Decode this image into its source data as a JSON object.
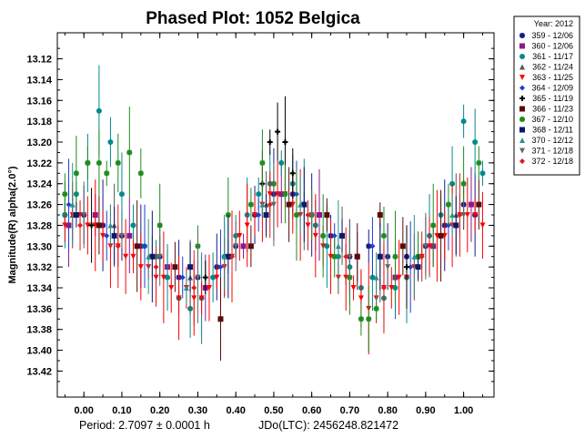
{
  "chart_data": {
    "type": "scatter",
    "title": "Phased Plot: 1052 Belgica",
    "xlabel": "",
    "ylabel": "Magnitude(R) alpha(2.0°)",
    "xlim": [
      -0.07,
      1.08
    ],
    "ylim": [
      13.445,
      13.095
    ],
    "y_inverted": true,
    "x_ticks": [
      "0.00",
      "0.10",
      "0.20",
      "0.30",
      "0.40",
      "0.50",
      "0.60",
      "0.70",
      "0.80",
      "0.90",
      "1.00"
    ],
    "x_tick_values": [
      0.0,
      0.1,
      0.2,
      0.3,
      0.4,
      0.5,
      0.6,
      0.7,
      0.8,
      0.9,
      1.0
    ],
    "y_ticks": [
      "13.12",
      "13.14",
      "13.16",
      "13.18",
      "13.20",
      "13.22",
      "13.24",
      "13.26",
      "13.28",
      "13.30",
      "13.32",
      "13.34",
      "13.36",
      "13.38",
      "13.40",
      "13.42"
    ],
    "y_tick_values": [
      13.12,
      13.14,
      13.16,
      13.18,
      13.2,
      13.22,
      13.24,
      13.26,
      13.28,
      13.3,
      13.32,
      13.34,
      13.36,
      13.38,
      13.4,
      13.42
    ],
    "grid": false,
    "legend_position": "right",
    "legend_title": "Year: 2012",
    "period_label": "Period: 2.7097 ± 0.0001 h",
    "jd_label": "JDo(LTC): 2456248.821472",
    "series": [
      {
        "name": "359 - 12/06",
        "color": "#1a1a8c",
        "marker": "star",
        "x": [
          -0.05,
          0.0,
          0.05,
          0.1,
          0.15,
          0.2,
          0.25,
          0.3,
          0.35,
          0.4,
          0.45,
          0.5,
          0.55,
          0.6,
          0.65,
          0.7,
          0.75,
          0.8,
          0.85,
          0.9,
          0.95,
          1.0,
          1.03
        ],
        "y": [
          13.27,
          13.27,
          13.28,
          13.29,
          13.3,
          13.31,
          13.33,
          13.33,
          13.32,
          13.3,
          13.27,
          13.25,
          13.25,
          13.27,
          13.29,
          13.31,
          13.3,
          13.31,
          13.31,
          13.3,
          13.28,
          13.26,
          13.27
        ]
      },
      {
        "name": "360 - 12/06",
        "color": "#8b1a8b",
        "marker": "square",
        "x": [
          -0.04,
          0.03,
          0.12,
          0.22,
          0.32,
          0.42,
          0.52,
          0.62,
          0.72,
          0.82,
          0.92,
          1.02
        ],
        "y": [
          13.28,
          13.27,
          13.29,
          13.32,
          13.34,
          13.3,
          13.25,
          13.27,
          13.31,
          13.33,
          13.3,
          13.26
        ]
      },
      {
        "name": "361 - 11/17",
        "color": "#008b8b",
        "marker": "circle",
        "x": [
          -0.05,
          -0.02,
          0.01,
          0.04,
          0.07,
          0.1,
          0.13,
          0.16,
          0.19,
          0.22,
          0.25,
          0.28,
          0.31,
          0.34,
          0.37,
          0.4,
          0.43,
          0.46,
          0.49,
          0.52,
          0.55,
          0.58,
          0.61,
          0.64,
          0.67,
          0.7,
          0.73,
          0.76,
          0.79,
          0.82,
          0.85,
          0.88,
          0.91,
          0.94,
          0.97,
          1.0,
          1.03,
          1.05
        ],
        "y": [
          13.27,
          13.25,
          13.22,
          13.17,
          13.2,
          13.25,
          13.28,
          13.3,
          13.31,
          13.33,
          13.35,
          13.36,
          13.35,
          13.33,
          13.31,
          13.29,
          13.27,
          13.25,
          13.24,
          13.22,
          13.24,
          13.26,
          13.28,
          13.3,
          13.31,
          13.32,
          13.34,
          13.33,
          13.35,
          13.34,
          13.33,
          13.31,
          13.29,
          13.27,
          13.24,
          13.18,
          13.2,
          13.23
        ]
      },
      {
        "name": "362 - 11/24",
        "color": "#555555",
        "marker": "triangle",
        "x": [
          -0.03,
          0.08,
          0.18,
          0.28,
          0.38,
          0.48,
          0.58,
          0.68,
          0.78,
          0.88,
          0.98
        ],
        "y": [
          13.27,
          13.28,
          13.31,
          13.33,
          13.31,
          13.26,
          13.26,
          13.29,
          13.31,
          13.31,
          13.27
        ]
      },
      {
        "name": "363 - 11/25",
        "color": "#ff0000",
        "marker": "triangle-down",
        "x": [
          -0.05,
          -0.03,
          -0.01,
          0.01,
          0.03,
          0.05,
          0.07,
          0.09,
          0.11,
          0.13,
          0.15,
          0.17,
          0.19,
          0.21,
          0.23,
          0.25,
          0.27,
          0.29,
          0.31,
          0.33,
          0.35,
          0.37,
          0.39,
          0.41,
          0.43,
          0.45,
          0.47,
          0.49,
          0.51,
          0.53,
          0.55,
          0.57,
          0.59,
          0.61,
          0.63,
          0.65,
          0.67,
          0.69,
          0.71,
          0.73,
          0.75,
          0.77,
          0.79,
          0.81,
          0.83,
          0.85,
          0.87,
          0.89,
          0.91,
          0.93,
          0.95,
          0.97,
          0.99,
          1.01,
          1.03,
          1.05
        ],
        "y": [
          13.28,
          13.27,
          13.27,
          13.28,
          13.28,
          13.29,
          13.3,
          13.3,
          13.31,
          13.31,
          13.32,
          13.32,
          13.33,
          13.33,
          13.34,
          13.35,
          13.34,
          13.35,
          13.35,
          13.34,
          13.33,
          13.32,
          13.31,
          13.29,
          13.28,
          13.27,
          13.26,
          13.25,
          13.25,
          13.25,
          13.26,
          13.27,
          13.28,
          13.29,
          13.3,
          13.31,
          13.33,
          13.33,
          13.34,
          13.35,
          13.36,
          13.35,
          13.34,
          13.34,
          13.33,
          13.33,
          13.32,
          13.31,
          13.3,
          13.29,
          13.29,
          13.28,
          13.27,
          13.27,
          13.27,
          13.28
        ]
      },
      {
        "name": "364 - 12/09",
        "color": "#1f3fcf",
        "marker": "diamond",
        "x": [
          -0.04,
          0.06,
          0.16,
          0.26,
          0.36,
          0.46,
          0.56,
          0.66,
          0.76,
          0.86,
          0.96
        ],
        "y": [
          13.26,
          13.29,
          13.3,
          13.33,
          13.32,
          13.27,
          13.25,
          13.29,
          13.3,
          13.32,
          13.28
        ]
      },
      {
        "name": "365 - 11/19",
        "color": "#000000",
        "marker": "plus",
        "x": [
          0.02,
          0.32,
          0.47,
          0.49,
          0.51,
          0.53,
          0.55,
          0.85
        ],
        "y": [
          13.28,
          13.33,
          13.24,
          13.2,
          13.19,
          13.2,
          13.23,
          13.32
        ]
      },
      {
        "name": "366 - 11/23",
        "color": "#5a0a0a",
        "marker": "square",
        "x": [
          0.04,
          0.14,
          0.24,
          0.36,
          0.44,
          0.54,
          0.64,
          0.72,
          0.78,
          0.84,
          0.94,
          1.04
        ],
        "y": [
          13.28,
          13.3,
          13.32,
          13.37,
          13.3,
          13.26,
          13.27,
          13.31,
          13.27,
          13.3,
          13.29,
          13.26
        ]
      },
      {
        "name": "367 - 12/10",
        "color": "#1e8c1e",
        "marker": "star",
        "x": [
          -0.05,
          -0.02,
          0.01,
          0.04,
          0.06,
          0.09,
          0.12,
          0.15,
          0.2,
          0.3,
          0.38,
          0.44,
          0.47,
          0.5,
          0.53,
          0.56,
          0.6,
          0.63,
          0.66,
          0.7,
          0.73,
          0.75,
          0.77,
          0.79,
          0.82,
          0.88,
          0.92,
          0.96,
          1.0,
          1.04
        ],
        "y": [
          13.25,
          13.23,
          13.22,
          13.22,
          13.23,
          13.22,
          13.21,
          13.23,
          13.28,
          13.3,
          13.27,
          13.26,
          13.22,
          13.24,
          13.25,
          13.27,
          13.27,
          13.29,
          13.31,
          13.33,
          13.37,
          13.37,
          13.36,
          13.29,
          13.31,
          13.31,
          13.28,
          13.26,
          13.24,
          13.22
        ]
      },
      {
        "name": "368 - 12/11",
        "color": "#0a1a6b",
        "marker": "square",
        "x": [
          -0.02,
          0.08,
          0.18,
          0.28,
          0.38,
          0.48,
          0.58,
          0.68,
          0.78,
          0.88,
          0.98
        ],
        "y": [
          13.27,
          13.29,
          13.31,
          13.32,
          13.31,
          13.27,
          13.26,
          13.29,
          13.31,
          13.32,
          13.28
        ]
      },
      {
        "name": "370 - 12/12",
        "color": "#2f8f8f",
        "marker": "triangle",
        "x": [
          -0.03,
          0.07,
          0.17,
          0.27,
          0.37,
          0.47,
          0.57,
          0.67,
          0.77,
          0.87,
          0.97
        ],
        "y": [
          13.26,
          13.28,
          13.31,
          13.34,
          13.31,
          13.26,
          13.26,
          13.3,
          13.33,
          13.31,
          13.27
        ]
      },
      {
        "name": "371 - 12/18",
        "color": "#666666",
        "marker": "triangle-down",
        "x": [
          0.0,
          0.1,
          0.2,
          0.3,
          0.4,
          0.5,
          0.6,
          0.7,
          0.8,
          0.9,
          1.0
        ],
        "y": [
          13.27,
          13.29,
          13.31,
          13.33,
          13.3,
          13.26,
          13.27,
          13.31,
          13.32,
          13.3,
          13.27
        ]
      },
      {
        "name": "372 - 12/18",
        "color": "#e01a1a",
        "marker": "diamond",
        "x": [
          -0.01,
          0.09,
          0.19,
          0.29,
          0.39,
          0.49,
          0.59,
          0.69,
          0.79,
          0.89,
          0.99
        ],
        "y": [
          13.28,
          13.3,
          13.32,
          13.34,
          13.31,
          13.26,
          13.27,
          13.31,
          13.34,
          13.31,
          13.27
        ]
      }
    ]
  }
}
